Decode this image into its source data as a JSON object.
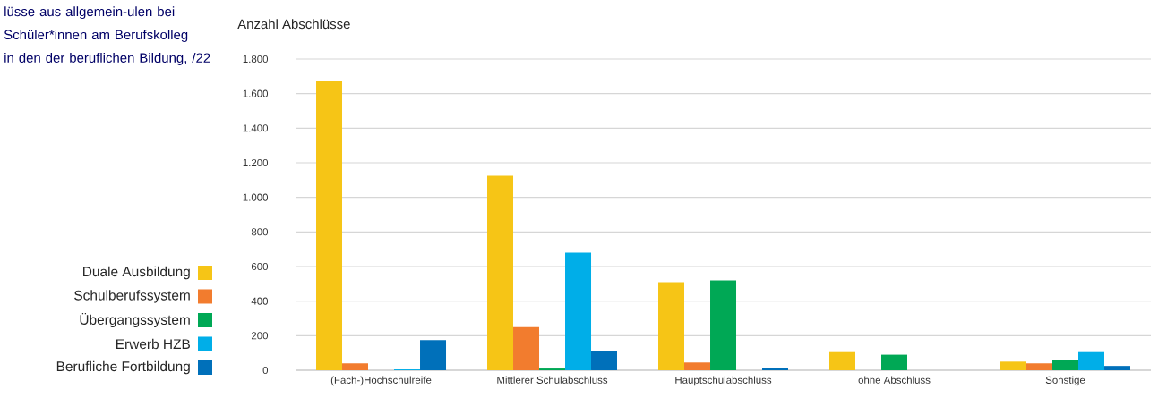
{
  "chart_data": {
    "type": "bar",
    "title": "lüsse aus allgemein-ulen bei Schüler*innen am Berufskolleg in den der beruflichen Bildung, /22",
    "ylabel": "Anzahl Abschlüsse",
    "categories": [
      "(Fach-)Hochschulreife",
      "Mittlerer Schulabschluss",
      "Hauptschulabschluss",
      "ohne Abschluss",
      "Sonstige"
    ],
    "series": [
      {
        "name": "Duale Ausbildung",
        "color": "#f6c516",
        "values": [
          1670,
          1125,
          510,
          105,
          50
        ]
      },
      {
        "name": "Schulberufssystem",
        "color": "#f27c2e",
        "values": [
          40,
          250,
          45,
          null,
          40
        ]
      },
      {
        "name": "Übergangssystem",
        "color": "#00a855",
        "values": [
          null,
          10,
          520,
          90,
          60
        ]
      },
      {
        "name": "Erwerb HZB",
        "color": "#00aee8",
        "values": [
          5,
          680,
          null,
          null,
          105
        ]
      },
      {
        "name": "Berufliche Fortbildung",
        "color": "#0070ba",
        "values": [
          175,
          110,
          15,
          null,
          25
        ]
      }
    ],
    "ylim": [
      0,
      1800
    ],
    "yticks": [
      0,
      200,
      400,
      600,
      800,
      {
        "value": 1000,
        "label": "1.000"
      },
      {
        "value": 1200,
        "label": "1.200"
      },
      {
        "value": 1400,
        "label": "1.400"
      },
      {
        "value": 1600,
        "label": "1.600"
      },
      {
        "value": 1800,
        "label": "1.800"
      }
    ],
    "grid": "y",
    "legend": "left"
  }
}
